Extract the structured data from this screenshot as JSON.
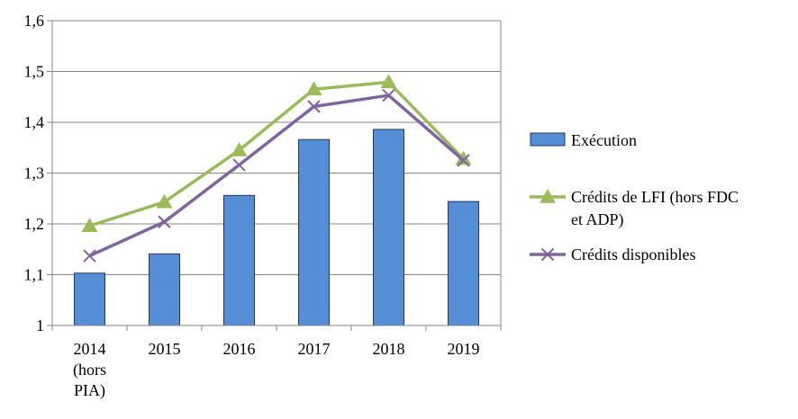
{
  "chart_data": {
    "type": "bar",
    "title": "",
    "xlabel": "",
    "ylabel": "",
    "ylim": [
      1,
      1.6
    ],
    "y_ticks": [
      "1",
      "1,1",
      "1,2",
      "1,3",
      "1,4",
      "1,5",
      "1,6"
    ],
    "y_tick_values": [
      1,
      1.1,
      1.2,
      1.3,
      1.4,
      1.5,
      1.6
    ],
    "categories": [
      [
        "2014",
        "(hors",
        "PIA)"
      ],
      [
        "2015"
      ],
      [
        "2016"
      ],
      [
        "2017"
      ],
      [
        "2018"
      ],
      [
        "2019"
      ]
    ],
    "grid": true,
    "legend_position": "right",
    "series": [
      {
        "name": "Exécution",
        "kind": "bar",
        "color": "#558ED5",
        "values": [
          1.103,
          1.141,
          1.256,
          1.366,
          1.386,
          1.244
        ]
      },
      {
        "name": "Crédits de LFI (hors FDC et ADP)",
        "legend_lines": [
          "Crédits de LFI (hors FDC",
          "et ADP)"
        ],
        "kind": "line",
        "marker": "triangle",
        "color": "#9BBB59",
        "values": [
          1.196,
          1.243,
          1.345,
          1.465,
          1.479,
          1.328
        ]
      },
      {
        "name": "Crédits disponibles",
        "legend_lines": [
          "Crédits disponibles"
        ],
        "kind": "line",
        "marker": "x",
        "color": "#8064A2",
        "values": [
          1.137,
          1.204,
          1.316,
          1.431,
          1.453,
          1.325
        ]
      }
    ]
  }
}
